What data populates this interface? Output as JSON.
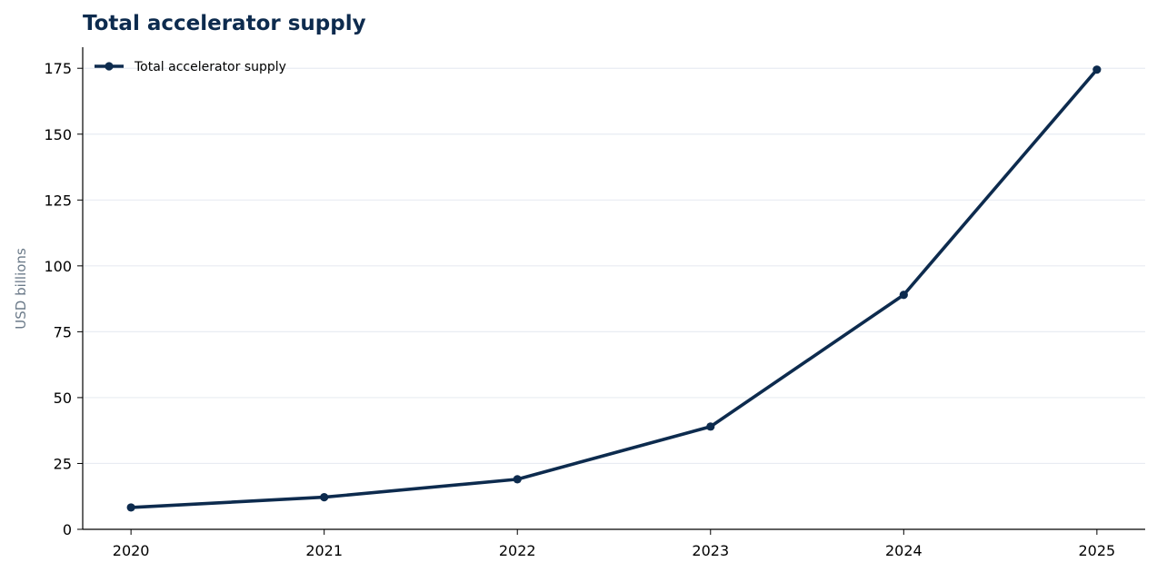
{
  "chart_data": {
    "type": "line",
    "title": "Total accelerator supply",
    "xlabel": "",
    "ylabel": "USD billions",
    "x": [
      2020,
      2021,
      2022,
      2023,
      2024,
      2025
    ],
    "x_tick_labels": [
      "2020",
      "2021",
      "2022",
      "2023",
      "2024",
      "2025"
    ],
    "y_ticks": [
      0,
      25,
      50,
      75,
      100,
      125,
      150,
      175
    ],
    "y_tick_labels": [
      "0",
      "25",
      "50",
      "75",
      "100",
      "125",
      "150",
      "175"
    ],
    "ylim": [
      0,
      183
    ],
    "xlim": [
      2019.75,
      2025.25
    ],
    "grid": "horizontal",
    "legend_position": "top-left",
    "series": [
      {
        "name": "Total accelerator supply",
        "color": "#0d2b4e",
        "marker": "circle",
        "values": [
          8.3,
          12.2,
          19.0,
          39.0,
          89.0,
          174.5
        ]
      }
    ],
    "colors": {
      "line": "#0d2b4e",
      "title": "#0d2b4e",
      "axis": "#000000",
      "grid": "#e8ecf2",
      "ylabel": "#6b7a89"
    }
  }
}
